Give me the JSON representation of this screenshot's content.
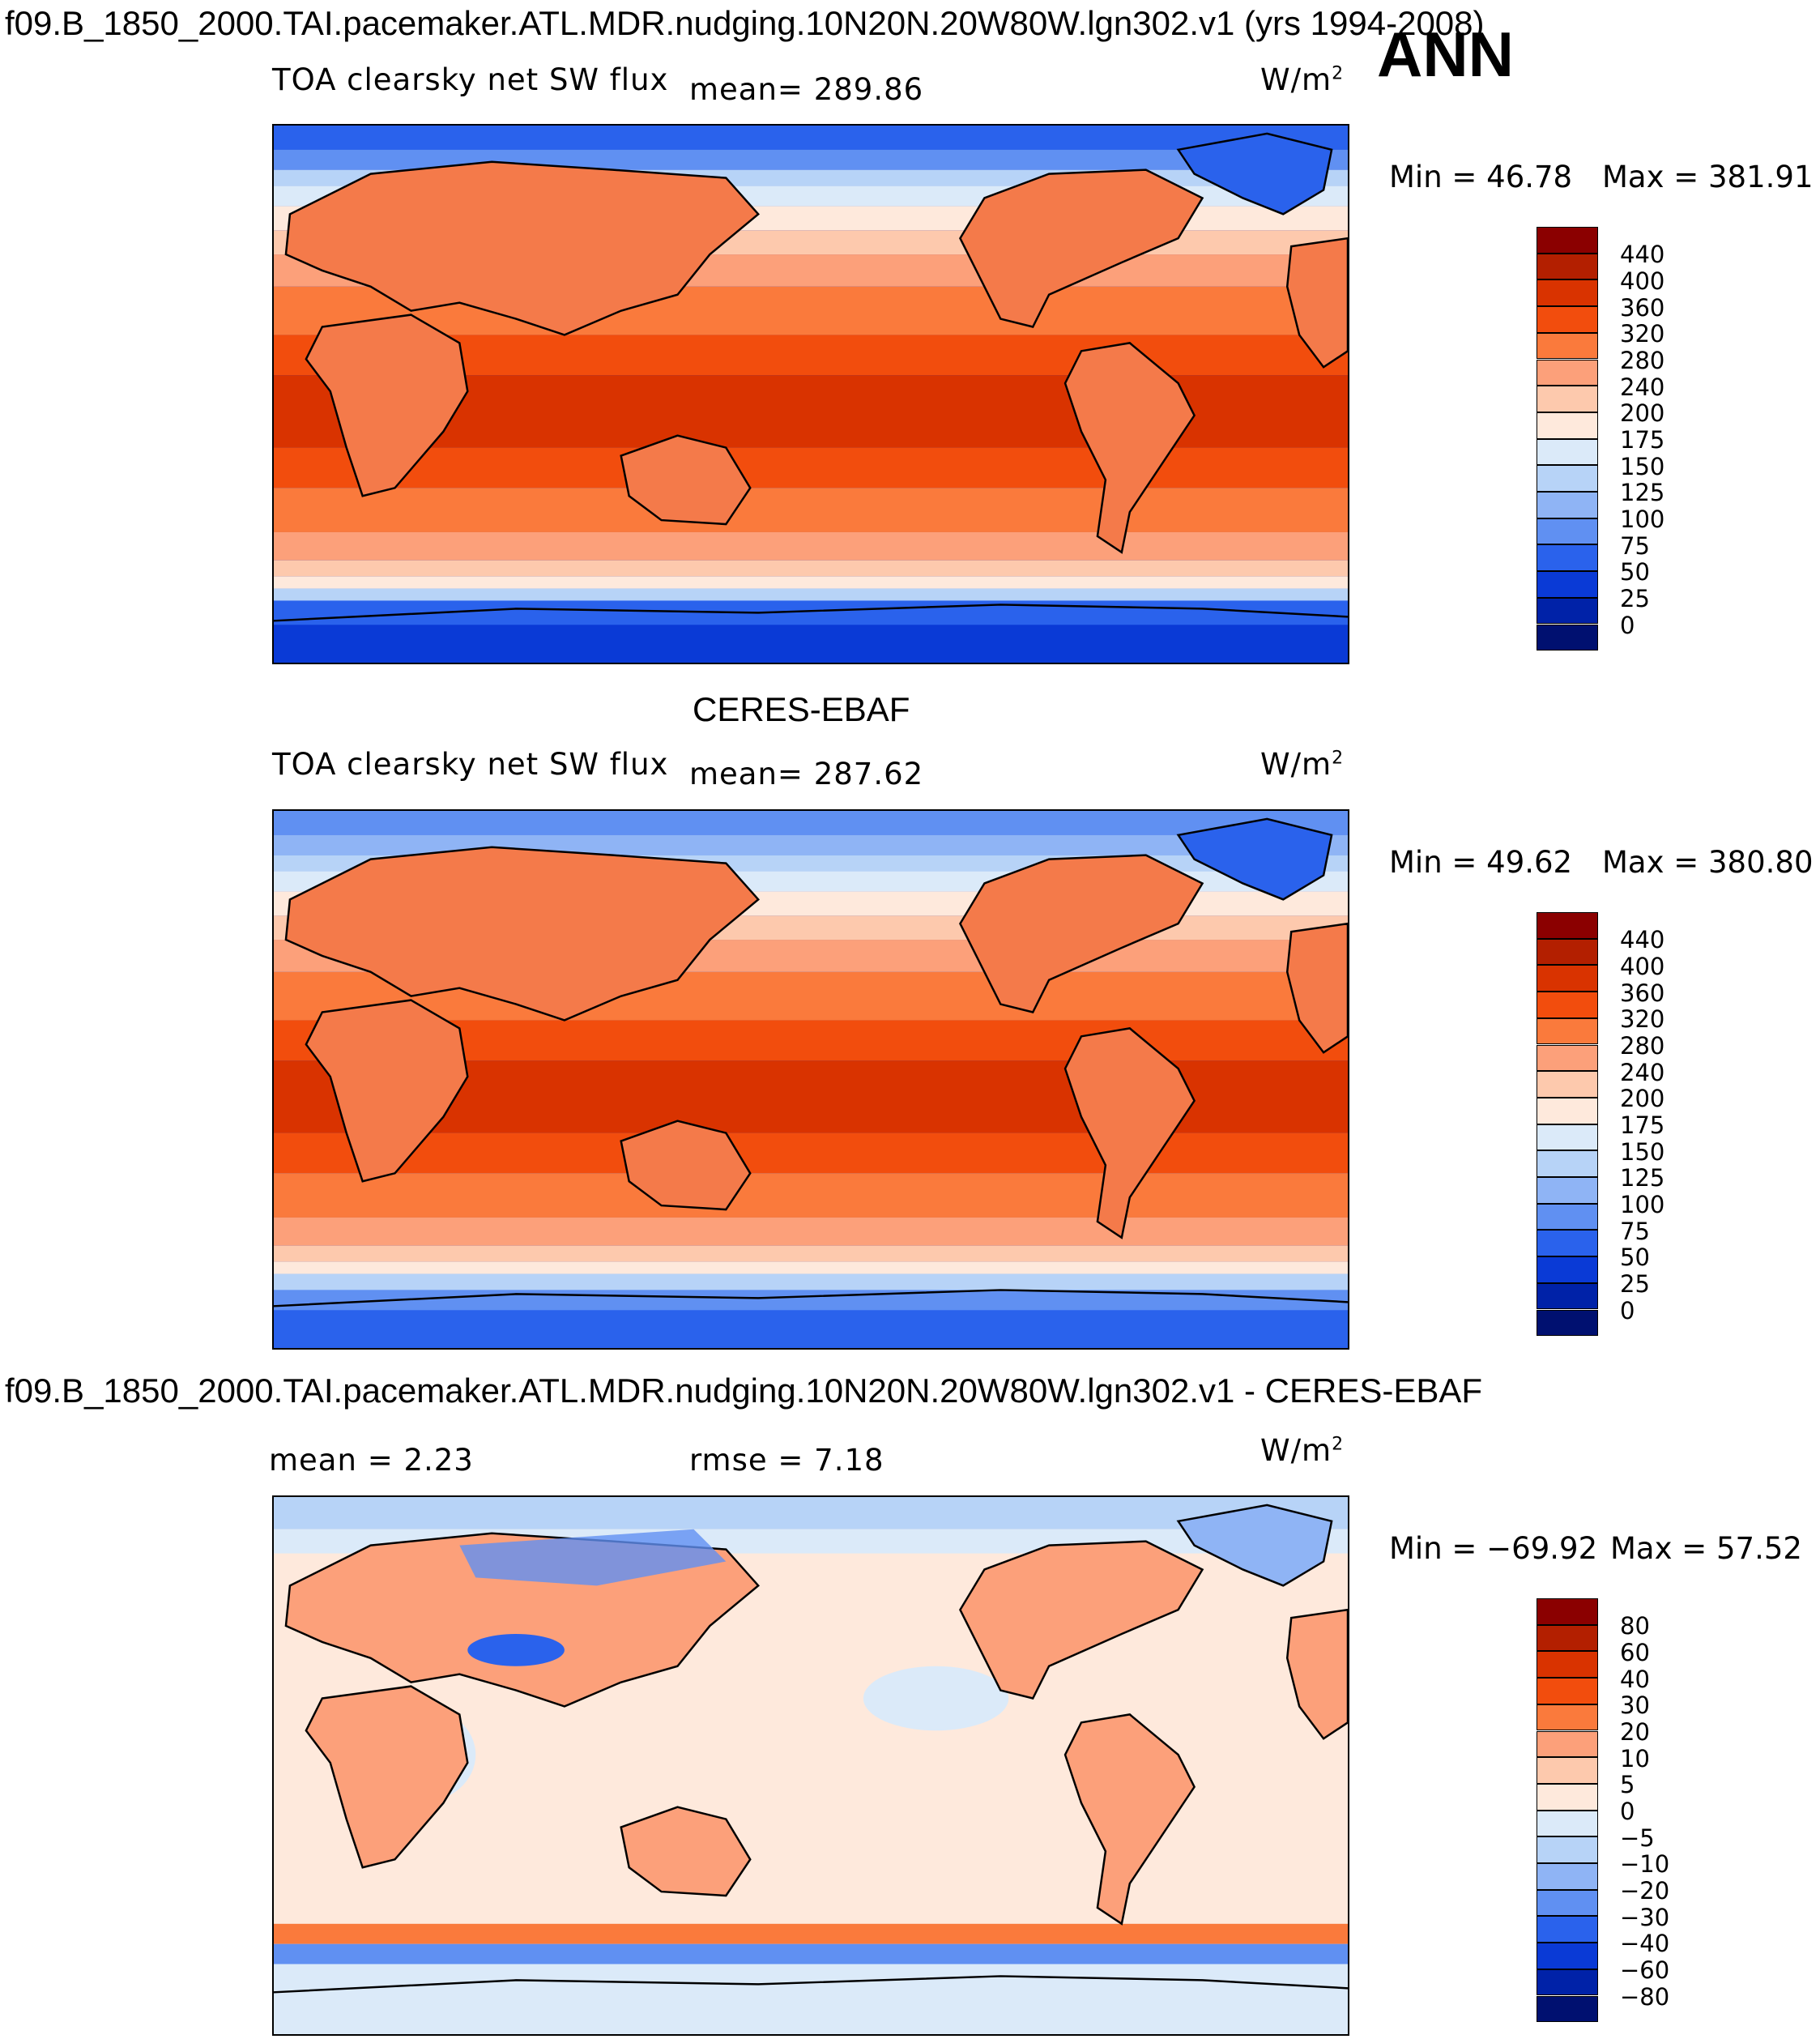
{
  "header": {
    "title": "f09.B_1850_2000.TAI.pacemaker.ATL.MDR.nudging.10N20N.20W80W.lgn302.v1 (yrs 1994-2008)",
    "season": "ANN"
  },
  "panels": {
    "model": {
      "variable_label": "TOA clearsky net SW flux",
      "mean_text": "mean=  289.86",
      "units_text": "W/m",
      "units_sup": "2",
      "min_text": "Min =   46.78",
      "max_text": "Max =  381.91"
    },
    "obs": {
      "dataset_title": "CERES-EBAF",
      "variable_label": "TOA clearsky net SW flux",
      "mean_text": "mean=  287.62",
      "units_text": "W/m",
      "units_sup": "2",
      "min_text": "Min =   49.62",
      "max_text": "Max =  380.80"
    },
    "diff": {
      "title": "f09.B_1850_2000.TAI.pacemaker.ATL.MDR.nudging.10N20N.20W80W.lgn302.v1 - CERES-EBAF",
      "mean_text": "mean =    2.23",
      "rmse_text": "rmse =    7.18",
      "units_text": "W/m",
      "units_sup": "2",
      "min_text": "Min = −69.92",
      "max_text": "Max =   57.52"
    }
  },
  "colorbars": {
    "abs": {
      "labels": [
        "440",
        "400",
        "360",
        "320",
        "280",
        "240",
        "200",
        "175",
        "150",
        "125",
        "100",
        "75",
        "50",
        "25",
        "0"
      ],
      "colors": [
        "#8b0000",
        "#b31f00",
        "#d93300",
        "#f24d0d",
        "#fa7a3c",
        "#fca07a",
        "#fdc9ad",
        "#fee9dc",
        "#dbeaf9",
        "#b7d3f7",
        "#8fb4f5",
        "#6090f2",
        "#2a62ec",
        "#0a3ad6",
        "#0022a8",
        "#001070"
      ]
    },
    "diff": {
      "labels": [
        "80",
        "60",
        "40",
        "30",
        "20",
        "10",
        "5",
        "0",
        "−5",
        "−10",
        "−20",
        "−30",
        "−40",
        "−60",
        "−80"
      ],
      "colors": [
        "#8b0000",
        "#b31f00",
        "#d93300",
        "#f24d0d",
        "#fa7a3c",
        "#fca07a",
        "#fdc9ad",
        "#fee9dc",
        "#dbeaf9",
        "#b7d3f7",
        "#8fb4f5",
        "#6090f2",
        "#2a62ec",
        "#0a3ad6",
        "#0022a8",
        "#001070"
      ]
    }
  }
}
